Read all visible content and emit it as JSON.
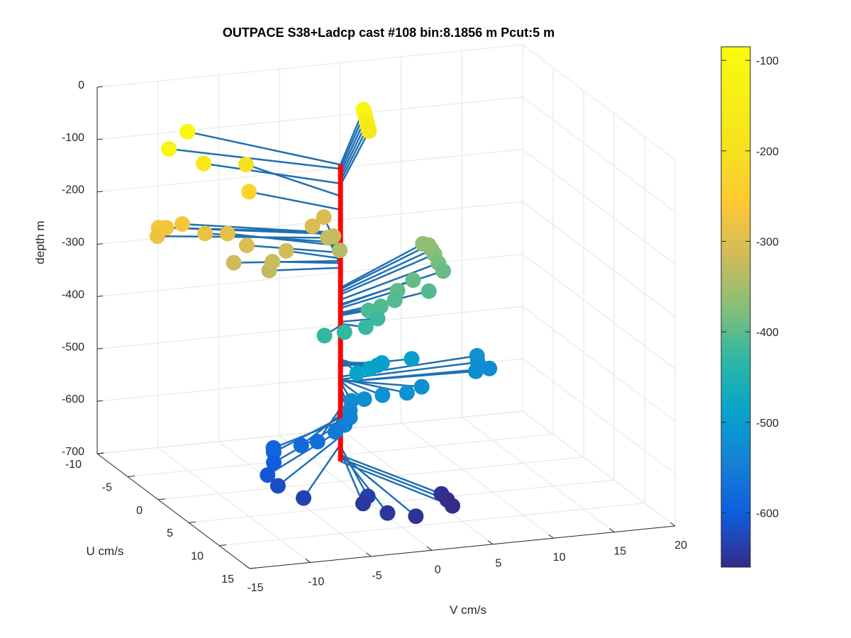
{
  "chart_data": {
    "type": "scatter",
    "title": "OUTPACE S38+Ladcp cast #108 bin:8.1856 m  Pcut:5 m",
    "xlabel": "V cm/s",
    "ylabel": "U cm/s",
    "zlabel": "depth m",
    "xlim": [
      -15,
      20
    ],
    "ylim": [
      -10,
      15
    ],
    "zlim": [
      -700,
      0
    ],
    "x_ticks": [
      "-15",
      "-10",
      "-5",
      "0",
      "5",
      "10",
      "15",
      "20"
    ],
    "y_ticks": [
      "-10",
      "-5",
      "0",
      "5",
      "10",
      "15"
    ],
    "z_ticks": [
      "0",
      "-100",
      "-200",
      "-300",
      "-400",
      "-500",
      "-600",
      "-700"
    ],
    "grid": true,
    "colorbar": {
      "colormap": "parula",
      "limits": [
        -660,
        -85
      ],
      "ticks": [
        "-100",
        "-200",
        "-300",
        "-400",
        "-500",
        "-600"
      ],
      "tick_values": [
        -100,
        -200,
        -300,
        -400,
        -500,
        -600
      ]
    },
    "colors": {
      "profile_line": "#ff0000",
      "stem": "#1f6fb2"
    },
    "points": [
      {
        "v": 6.98,
        "u": -10.14,
        "z": -95
      },
      {
        "v": 7.04,
        "u": -10.08,
        "z": -102
      },
      {
        "v": 7.1,
        "u": -10.02,
        "z": -110
      },
      {
        "v": 7.16,
        "u": -9.96,
        "z": -118
      },
      {
        "v": 7.22,
        "u": -9.9,
        "z": -126
      },
      {
        "v": 7.28,
        "u": -9.84,
        "z": -134
      },
      {
        "v": -10.54,
        "u": -7.12,
        "z": -103
      },
      {
        "v": -7.94,
        "u": -9.27,
        "z": -95
      },
      {
        "v": -8.01,
        "u": -6.48,
        "z": -131
      },
      {
        "v": -3.82,
        "u": -7.87,
        "z": -155
      },
      {
        "v": -4.91,
        "u": -5.21,
        "z": -181
      },
      {
        "v": -12.76,
        "u": -4.36,
        "z": -224
      },
      {
        "v": -10.61,
        "u": -4.81,
        "z": -226
      },
      {
        "v": -13.13,
        "u": -3.86,
        "z": -235
      },
      {
        "v": -8.94,
        "u": -4.38,
        "z": -244
      },
      {
        "v": -7.02,
        "u": -4.52,
        "z": -250
      },
      {
        "v": -12.02,
        "u": -4.61,
        "z": -228
      },
      {
        "v": -7.92,
        "u": -1.72,
        "z": -279
      },
      {
        "v": -6.11,
        "u": -3.19,
        "z": -263
      },
      {
        "v": -5.45,
        "u": -0.84,
        "z": -292
      },
      {
        "v": -4.81,
        "u": -1.58,
        "z": -283
      },
      {
        "v": -3.21,
        "u": -2.49,
        "z": -274
      },
      {
        "v": 0.66,
        "u": -5.92,
        "z": -266
      },
      {
        "v": 2.31,
        "u": -7.34,
        "z": -265
      },
      {
        "v": 2.23,
        "u": -5.61,
        "z": -286
      },
      {
        "v": 1.79,
        "u": -5.64,
        "z": -288
      },
      {
        "v": 2.18,
        "u": -4.47,
        "z": -303
      },
      {
        "v": 10.21,
        "u": -6.85,
        "z": -330
      },
      {
        "v": 10.68,
        "u": -6.34,
        "z": -338
      },
      {
        "v": 10.7,
        "u": -5.92,
        "z": -343
      },
      {
        "v": 10.65,
        "u": -5.16,
        "z": -353
      },
      {
        "v": 10.68,
        "u": -4.44,
        "z": -362
      },
      {
        "v": 10.66,
        "u": -6.79,
        "z": -333
      },
      {
        "v": 7.71,
        "u": -3.47,
        "z": -364
      },
      {
        "v": 5.82,
        "u": -2.26,
        "z": -369
      },
      {
        "v": 5.14,
        "u": -1.36,
        "z": -378
      },
      {
        "v": 3.7,
        "u": -0.77,
        "z": -381
      },
      {
        "v": 2.51,
        "u": -0.42,
        "z": -383
      },
      {
        "v": 8.55,
        "u": -2.56,
        "z": -379
      },
      {
        "v": 3.0,
        "u": 0.1,
        "z": -395
      },
      {
        "v": 1.51,
        "u": 1.13,
        "z": -399
      },
      {
        "v": -2.15,
        "u": 1.66,
        "z": -402
      },
      {
        "v": -0.36,
        "u": 1.37,
        "z": -402
      },
      {
        "v": 5.88,
        "u": -0.05,
        "z": -480
      },
      {
        "v": 2.97,
        "u": 0.88,
        "z": -473
      },
      {
        "v": 2.57,
        "u": 0.95,
        "z": -476
      },
      {
        "v": 1.25,
        "u": 2.31,
        "z": -467
      },
      {
        "v": -0.21,
        "u": 3.15,
        "z": -465
      },
      {
        "v": 11.93,
        "u": -1.39,
        "z": -500
      },
      {
        "v": 11.62,
        "u": -0.66,
        "z": -505
      },
      {
        "v": 12.11,
        "u": 0.28,
        "z": -510
      },
      {
        "v": 10.85,
        "u": 0.56,
        "z": -510
      },
      {
        "v": 5.28,
        "u": 2.79,
        "z": -507
      },
      {
        "v": 3.47,
        "u": 3.98,
        "z": -504
      },
      {
        "v": 1.52,
        "u": 3.85,
        "z": -505
      },
      {
        "v": 0.01,
        "u": 3.87,
        "z": -509
      },
      {
        "v": -1.05,
        "u": 3.85,
        "z": -510
      },
      {
        "v": -1.61,
        "u": 4.75,
        "z": -519
      },
      {
        "v": -1.77,
        "u": 5.1,
        "z": -529
      },
      {
        "v": -2.58,
        "u": 5.84,
        "z": -535
      },
      {
        "v": -3.43,
        "u": 6.0,
        "z": -545
      },
      {
        "v": -4.9,
        "u": 6.0,
        "z": -560
      },
      {
        "v": -5.79,
        "u": 5.1,
        "z": -573
      },
      {
        "v": -7.45,
        "u": 3.85,
        "z": -585
      },
      {
        "v": -8.2,
        "u": 5.39,
        "z": -578
      },
      {
        "v": -8.53,
        "u": 6.06,
        "z": -591
      },
      {
        "v": -9.63,
        "u": 7.24,
        "z": -602
      },
      {
        "v": -9.31,
        "u": 8.3,
        "z": -614
      },
      {
        "v": -7.87,
        "u": 9.63,
        "z": -629
      },
      {
        "v": -2.84,
        "u": 10.13,
        "z": -633
      },
      {
        "v": -3.42,
        "u": 10.52,
        "z": -642
      },
      {
        "v": -2.41,
        "u": 12.51,
        "z": -645
      },
      {
        "v": -0.51,
        "u": 13.37,
        "z": -648
      },
      {
        "v": 3.6,
        "u": 9.37,
        "z": -650
      },
      {
        "v": 3.76,
        "u": 9.99,
        "z": -656
      },
      {
        "v": 3.85,
        "u": 10.68,
        "z": -662
      }
    ]
  }
}
